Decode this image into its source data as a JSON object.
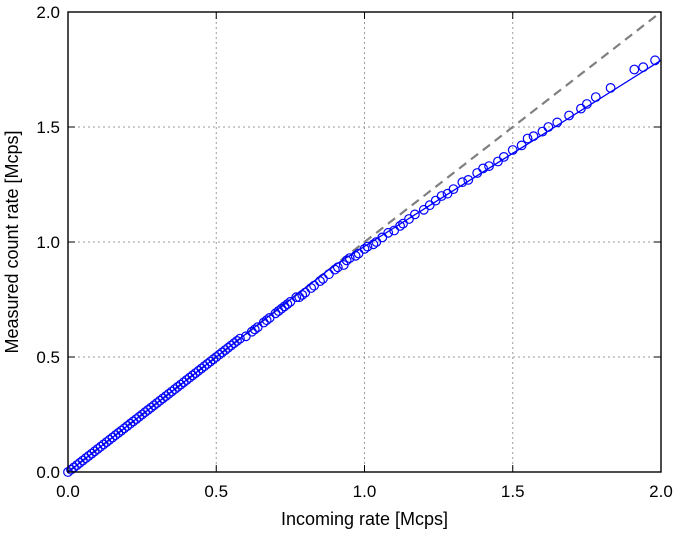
{
  "chart_data": {
    "type": "scatter",
    "xlabel": "Incoming rate [Mcps]",
    "ylabel": "Measured count rate [Mcps]",
    "xlim": [
      0.0,
      2.0
    ],
    "ylim": [
      0.0,
      2.0
    ],
    "xticks": [
      "0.0",
      "0.5",
      "1.0",
      "1.5",
      "2.0"
    ],
    "yticks": [
      "0.0",
      "0.5",
      "1.0",
      "1.5",
      "2.0"
    ],
    "xtick_values": [
      0.0,
      0.5,
      1.0,
      1.5,
      2.0
    ],
    "ytick_values": [
      0.0,
      0.5,
      1.0,
      1.5,
      2.0
    ],
    "grid": true,
    "colors": {
      "measured": "#0000ff",
      "ideal": "#808080"
    },
    "series": [
      {
        "kind": "markers",
        "marker": "open-circle",
        "x": [
          0.0,
          0.01,
          0.02,
          0.03,
          0.04,
          0.05,
          0.06,
          0.07,
          0.08,
          0.09,
          0.1,
          0.11,
          0.12,
          0.13,
          0.14,
          0.15,
          0.16,
          0.17,
          0.18,
          0.19,
          0.2,
          0.21,
          0.22,
          0.23,
          0.24,
          0.25,
          0.26,
          0.27,
          0.28,
          0.29,
          0.3,
          0.31,
          0.32,
          0.33,
          0.34,
          0.35,
          0.36,
          0.37,
          0.38,
          0.39,
          0.4,
          0.41,
          0.42,
          0.43,
          0.44,
          0.45,
          0.46,
          0.47,
          0.48,
          0.49,
          0.5,
          0.51,
          0.52,
          0.53,
          0.54,
          0.55,
          0.56,
          0.57,
          0.58,
          0.6,
          0.62,
          0.63,
          0.64,
          0.66,
          0.67,
          0.68,
          0.7,
          0.71,
          0.72,
          0.73,
          0.74,
          0.75,
          0.77,
          0.78,
          0.79,
          0.8,
          0.82,
          0.83,
          0.85,
          0.86,
          0.88,
          0.9,
          0.91,
          0.93,
          0.94,
          0.95,
          0.97,
          0.98,
          1.0,
          1.01,
          1.03,
          1.04,
          1.06,
          1.08,
          1.1,
          1.12,
          1.13,
          1.15,
          1.17,
          1.2,
          1.22,
          1.24,
          1.26,
          1.28,
          1.3,
          1.33,
          1.35,
          1.38,
          1.4,
          1.42,
          1.45,
          1.47,
          1.5,
          1.53,
          1.55,
          1.57,
          1.6,
          1.62,
          1.65,
          1.69,
          1.73,
          1.75,
          1.78,
          1.83,
          1.91,
          1.94,
          1.98
        ],
        "y": [
          0.0,
          0.01,
          0.02,
          0.03,
          0.04,
          0.05,
          0.06,
          0.07,
          0.08,
          0.09,
          0.1,
          0.11,
          0.12,
          0.13,
          0.14,
          0.15,
          0.16,
          0.17,
          0.18,
          0.19,
          0.2,
          0.21,
          0.22,
          0.23,
          0.24,
          0.25,
          0.26,
          0.27,
          0.28,
          0.29,
          0.3,
          0.31,
          0.32,
          0.33,
          0.34,
          0.35,
          0.36,
          0.37,
          0.38,
          0.39,
          0.4,
          0.41,
          0.42,
          0.43,
          0.44,
          0.45,
          0.46,
          0.47,
          0.48,
          0.49,
          0.5,
          0.51,
          0.52,
          0.53,
          0.54,
          0.55,
          0.56,
          0.57,
          0.58,
          0.59,
          0.61,
          0.62,
          0.63,
          0.65,
          0.66,
          0.67,
          0.69,
          0.7,
          0.71,
          0.72,
          0.73,
          0.74,
          0.76,
          0.76,
          0.77,
          0.78,
          0.8,
          0.81,
          0.83,
          0.84,
          0.86,
          0.88,
          0.89,
          0.9,
          0.92,
          0.93,
          0.94,
          0.95,
          0.97,
          0.98,
          0.99,
          1.0,
          1.02,
          1.04,
          1.05,
          1.07,
          1.08,
          1.1,
          1.12,
          1.14,
          1.16,
          1.18,
          1.2,
          1.21,
          1.23,
          1.26,
          1.27,
          1.3,
          1.32,
          1.33,
          1.35,
          1.37,
          1.4,
          1.42,
          1.45,
          1.46,
          1.48,
          1.5,
          1.52,
          1.55,
          1.58,
          1.6,
          1.63,
          1.67,
          1.75,
          1.76,
          1.79
        ]
      },
      {
        "kind": "fit-line",
        "x": [
          0.0,
          0.9,
          2.0
        ],
        "y": [
          0.0,
          0.9,
          1.79
        ]
      },
      {
        "kind": "ideal-dashed",
        "x": [
          0.0,
          2.0
        ],
        "y": [
          0.0,
          2.0
        ]
      }
    ]
  }
}
